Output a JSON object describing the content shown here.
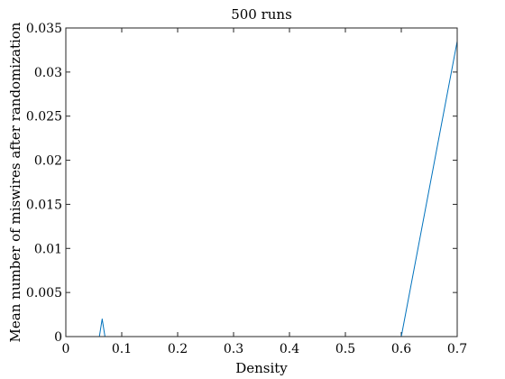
{
  "chart_data": {
    "type": "line",
    "title": "500 runs",
    "xlabel": "Density",
    "ylabel": "Mean number of miswires after randomization",
    "xlim": [
      0,
      0.7
    ],
    "ylim": [
      0,
      0.035
    ],
    "xticks": [
      0,
      0.1,
      0.2,
      0.3,
      0.4,
      0.5,
      0.6,
      0.7
    ],
    "xtick_labels": [
      "0",
      "0.1",
      "0.2",
      "0.3",
      "0.4",
      "0.5",
      "0.6",
      "0.7"
    ],
    "yticks": [
      0,
      0.005,
      0.01,
      0.015,
      0.02,
      0.025,
      0.03,
      0.035
    ],
    "ytick_labels": [
      "0",
      "0.005",
      "0.01",
      "0.015",
      "0.02",
      "0.025",
      "0.03",
      "0.035"
    ],
    "grid": false,
    "series": [
      {
        "color": "#0072BD",
        "x": [
          0.01,
          0.06,
          0.065,
          0.07,
          0.6,
          0.7
        ],
        "y": [
          0,
          0,
          0.002,
          0,
          0,
          0.0335
        ]
      }
    ]
  }
}
